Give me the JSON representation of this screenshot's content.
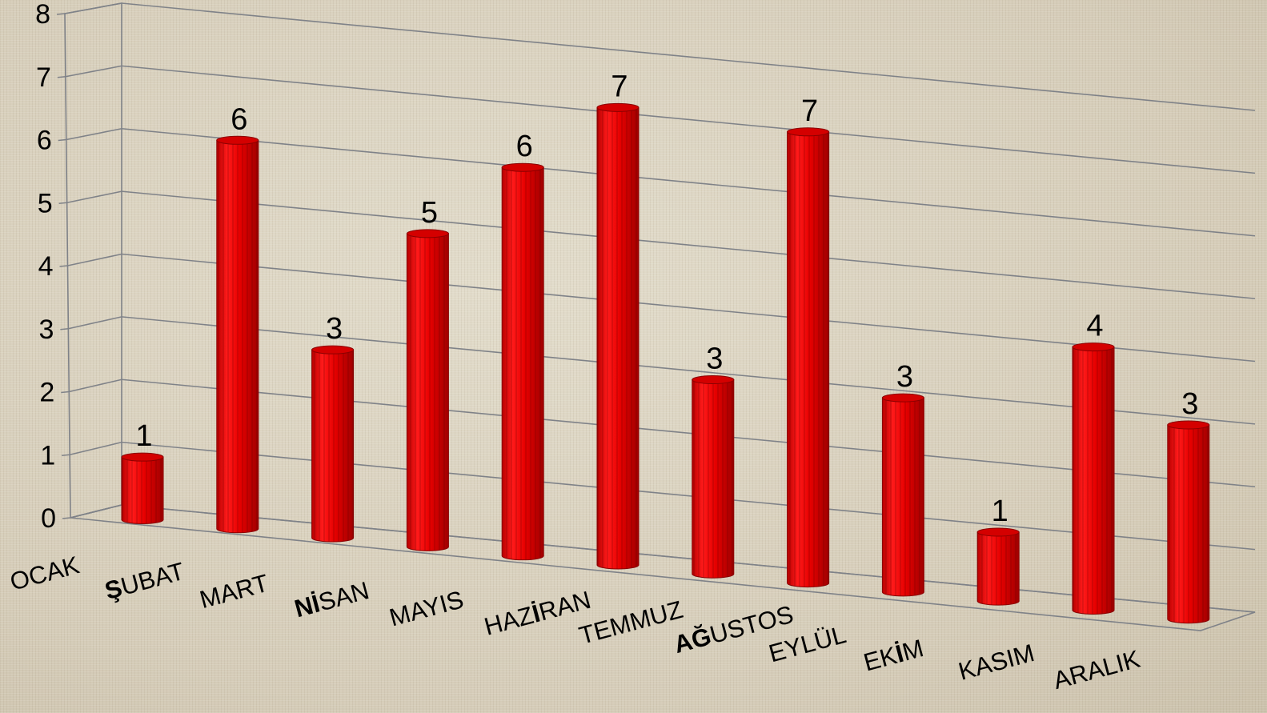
{
  "chart_data": {
    "type": "bar",
    "style": "3d-cylinder",
    "bar_color": "#ee0000",
    "categories": [
      "OCAK",
      "ŞUBAT",
      "MART",
      "NİSAN",
      "MAYIS",
      "HAZİRAN",
      "TEMMUZ",
      "AĞUSTOS",
      "EYLÜL",
      "EKİM",
      "KASIM",
      "ARALIK"
    ],
    "category_bold_prefix": [
      0,
      1,
      0,
      2,
      0,
      0,
      0,
      2,
      0,
      0,
      0,
      0
    ],
    "category_bold_letter": [
      -1,
      -1,
      -1,
      -1,
      -1,
      3,
      -1,
      -1,
      -1,
      2,
      -1,
      -1
    ],
    "values": [
      1,
      6,
      3,
      5,
      6,
      7,
      3,
      7,
      3,
      1,
      4,
      3
    ],
    "bar_heights": [
      1.0,
      6.2,
      3.0,
      5.0,
      6.2,
      7.3,
      3.1,
      7.2,
      3.1,
      1.1,
      4.2,
      3.1
    ],
    "yticks": [
      "0",
      "1",
      "2",
      "3",
      "4",
      "5",
      "6",
      "7",
      "8"
    ],
    "ylim": [
      0,
      8
    ],
    "title": "",
    "xlabel": "",
    "ylabel": "",
    "grid": true,
    "legend": "none"
  }
}
